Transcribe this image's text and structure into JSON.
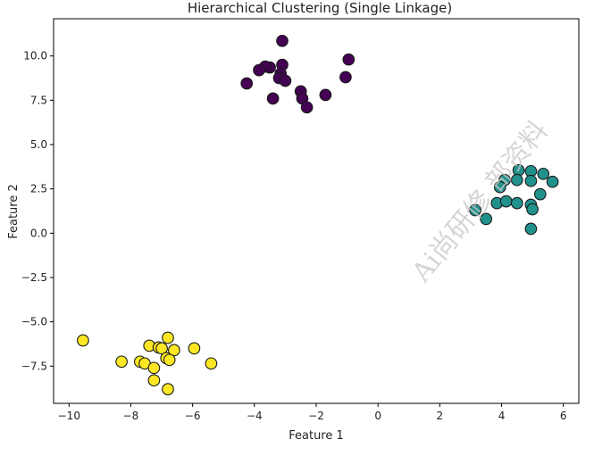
{
  "chart_data": {
    "type": "scatter",
    "title": "Hierarchical Clustering (Single Linkage)",
    "xlabel": "Feature 1",
    "ylabel": "Feature 2",
    "xlim": [
      -10.5,
      6.5
    ],
    "ylim": [
      -9.6,
      12.1
    ],
    "grid": false,
    "legend": "none",
    "x_ticks": [
      -10,
      -8,
      -6,
      -4,
      -2,
      0,
      2,
      4,
      6
    ],
    "y_ticks": [
      -7.5,
      -5.0,
      -2.5,
      0.0,
      2.5,
      5.0,
      7.5,
      10.0
    ],
    "x_tick_labels": [
      "−10",
      "−8",
      "−6",
      "−4",
      "−2",
      "0",
      "2",
      "4",
      "6"
    ],
    "y_tick_labels": [
      "−7.5",
      "−5.0",
      "−2.5",
      "0.0",
      "2.5",
      "5.0",
      "7.5",
      "10.0"
    ],
    "series": [
      {
        "color": "#440154",
        "points": [
          [
            -3.1,
            10.85
          ],
          [
            -0.95,
            9.8
          ],
          [
            -3.1,
            9.5
          ],
          [
            -3.5,
            9.35
          ],
          [
            -3.65,
            9.4
          ],
          [
            -3.85,
            9.2
          ],
          [
            -3.15,
            9.0
          ],
          [
            -3.2,
            8.75
          ],
          [
            -3.0,
            8.6
          ],
          [
            -1.05,
            8.8
          ],
          [
            -4.25,
            8.45
          ],
          [
            -2.5,
            8.0
          ],
          [
            -1.7,
            7.8
          ],
          [
            -2.45,
            7.6
          ],
          [
            -3.4,
            7.6
          ],
          [
            -2.3,
            7.1
          ]
        ]
      },
      {
        "color": "#21918c",
        "points": [
          [
            4.55,
            3.55
          ],
          [
            4.95,
            3.5
          ],
          [
            5.35,
            3.35
          ],
          [
            4.1,
            3.0
          ],
          [
            4.5,
            3.0
          ],
          [
            4.95,
            2.95
          ],
          [
            5.65,
            2.9
          ],
          [
            3.95,
            2.6
          ],
          [
            5.25,
            2.2
          ],
          [
            3.85,
            1.7
          ],
          [
            4.15,
            1.8
          ],
          [
            4.5,
            1.7
          ],
          [
            4.95,
            1.6
          ],
          [
            5.0,
            1.35
          ],
          [
            3.15,
            1.3
          ],
          [
            3.5,
            0.8
          ],
          [
            4.95,
            0.25
          ]
        ]
      },
      {
        "color": "#fde725",
        "points": [
          [
            -9.55,
            -6.05
          ],
          [
            -6.8,
            -5.9
          ],
          [
            -7.4,
            -6.35
          ],
          [
            -7.1,
            -6.45
          ],
          [
            -7.0,
            -6.5
          ],
          [
            -5.95,
            -6.5
          ],
          [
            -6.6,
            -6.6
          ],
          [
            -6.85,
            -7.05
          ],
          [
            -6.75,
            -7.15
          ],
          [
            -8.3,
            -7.25
          ],
          [
            -7.7,
            -7.25
          ],
          [
            -7.55,
            -7.35
          ],
          [
            -5.4,
            -7.35
          ],
          [
            -7.25,
            -7.6
          ],
          [
            -7.25,
            -8.3
          ],
          [
            -6.8,
            -8.8
          ]
        ]
      }
    ]
  },
  "watermark": "Ai尚研修  部资料"
}
